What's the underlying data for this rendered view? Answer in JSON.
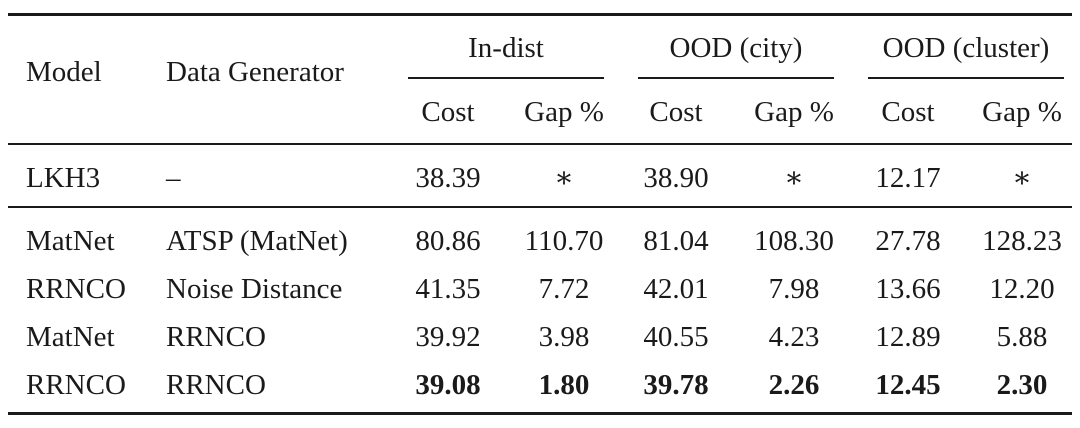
{
  "table": {
    "headers": {
      "model": "Model",
      "data_generator": "Data Generator",
      "groups": [
        "In-dist",
        "OOD (city)",
        "OOD (cluster)"
      ],
      "sub": [
        "Cost",
        "Gap %",
        "Cost",
        "Gap %",
        "Cost",
        "Gap %"
      ]
    },
    "baseline": {
      "model": "LKH3",
      "generator": "–",
      "values": [
        "38.39",
        "∗",
        "38.90",
        "∗",
        "12.17",
        "∗"
      ]
    },
    "rows": [
      {
        "model": "MatNet",
        "generator": "ATSP (MatNet)",
        "values": [
          "80.86",
          "110.70",
          "81.04",
          "108.30",
          "27.78",
          "128.23"
        ]
      },
      {
        "model": "RRNCO",
        "generator": "Noise Distance",
        "values": [
          "41.35",
          "7.72",
          "42.01",
          "7.98",
          "13.66",
          "12.20"
        ]
      },
      {
        "model": "MatNet",
        "generator": "RRNCO",
        "values": [
          "39.92",
          "3.98",
          "40.55",
          "4.23",
          "12.89",
          "5.88"
        ]
      },
      {
        "model": "RRNCO",
        "generator": "RRNCO",
        "values": [
          "39.08",
          "1.80",
          "39.78",
          "2.26",
          "12.45",
          "2.30"
        ],
        "bold_values": true
      }
    ]
  }
}
